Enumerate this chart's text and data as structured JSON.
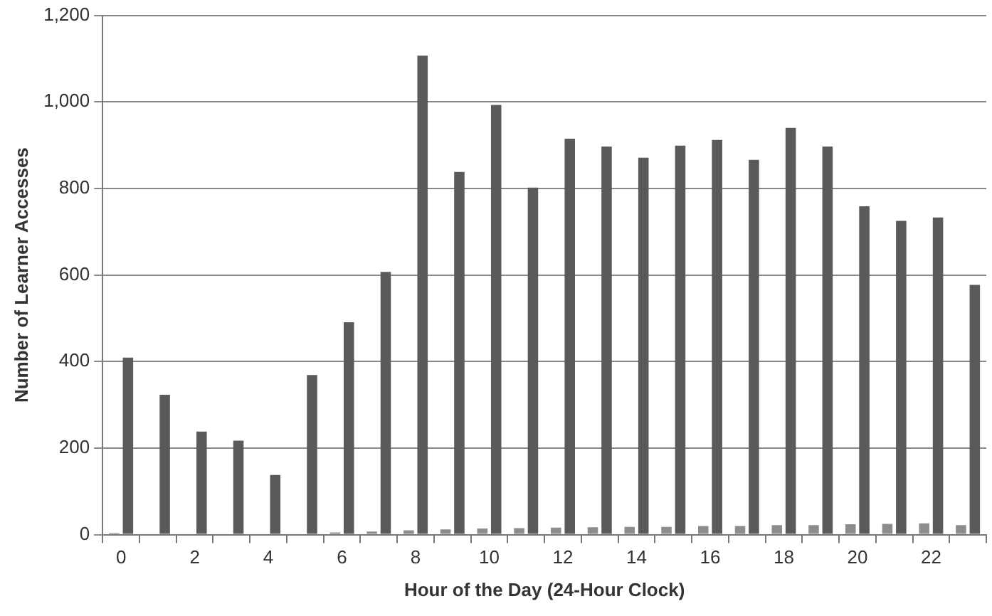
{
  "chart_data": {
    "type": "bar",
    "xlabel": "Hour of the Day (24-Hour Clock)",
    "ylabel": "Number of Learner Accesses",
    "categories": [
      "0",
      null,
      "2",
      null,
      "4",
      null,
      "6",
      null,
      "8",
      null,
      "10",
      null,
      "12",
      null,
      "14",
      null,
      "16",
      null,
      "18",
      null,
      "20",
      null,
      "22",
      null
    ],
    "series": [
      {
        "color": "#8c8c8c",
        "values": [
          4,
          null,
          null,
          null,
          null,
          null,
          5,
          7,
          10,
          12,
          14,
          15,
          16,
          17,
          18,
          18,
          20,
          20,
          22,
          22,
          24,
          25,
          26,
          22
        ]
      },
      {
        "color": "#5a5a5a",
        "values": [
          409,
          323,
          238,
          217,
          138,
          369,
          491,
          607,
          1107,
          838,
          993,
          802,
          915,
          897,
          871,
          899,
          912,
          866,
          940,
          897,
          759,
          725,
          733,
          577
        ]
      }
    ],
    "ylim": [
      0,
      1200
    ],
    "yticks": [
      0,
      200,
      400,
      600,
      800,
      {
        "value": 1000,
        "label": "1,000"
      },
      {
        "value": 1200,
        "label": "1,200"
      }
    ],
    "grid": "y"
  }
}
